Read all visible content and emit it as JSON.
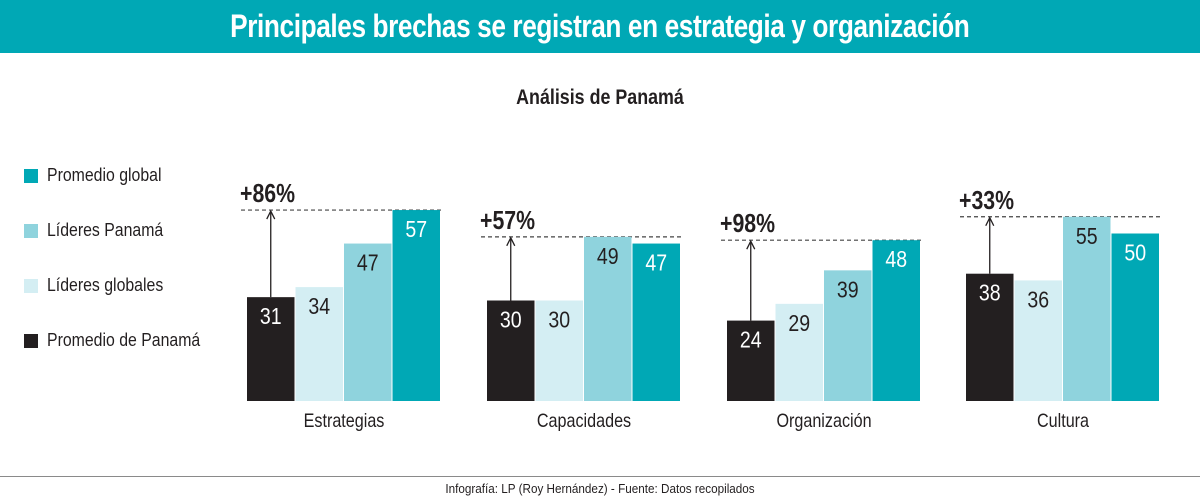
{
  "header": {
    "title": "Principales brechas se registran en estrategia y organización"
  },
  "footer": {
    "credit": "Infografía: LP (Roy Hernández) - Fuente: Datos recopilados"
  },
  "colors": {
    "band": "#00a8b5",
    "promedio_global": "#00a8b5",
    "lideres_panama": "#8fd3dd",
    "lideres_globales": "#d4eef3",
    "promedio_panama": "#231f20"
  },
  "chart_data": {
    "type": "bar",
    "title": "Análisis de Panamá",
    "categories": [
      "Estrategias",
      "Capacidades",
      "Organización",
      "Cultura"
    ],
    "series": [
      {
        "name": "Promedio de Panamá",
        "values": [
          31,
          30,
          24,
          38
        ]
      },
      {
        "name": "Líderes globales",
        "values": [
          34,
          30,
          29,
          36
        ]
      },
      {
        "name": "Líderes Panamá",
        "values": [
          47,
          49,
          39,
          55
        ]
      },
      {
        "name": "Promedio global",
        "values": [
          57,
          47,
          48,
          50
        ]
      }
    ],
    "legend_order": [
      "Promedio global",
      "Líderes Panamá",
      "Líderes globales",
      "Promedio de Panamá"
    ],
    "gap_annotations": [
      "+86%",
      "+57%",
      "+98%",
      "+33%"
    ],
    "ylim": [
      0,
      60
    ],
    "legend_position": "left"
  }
}
